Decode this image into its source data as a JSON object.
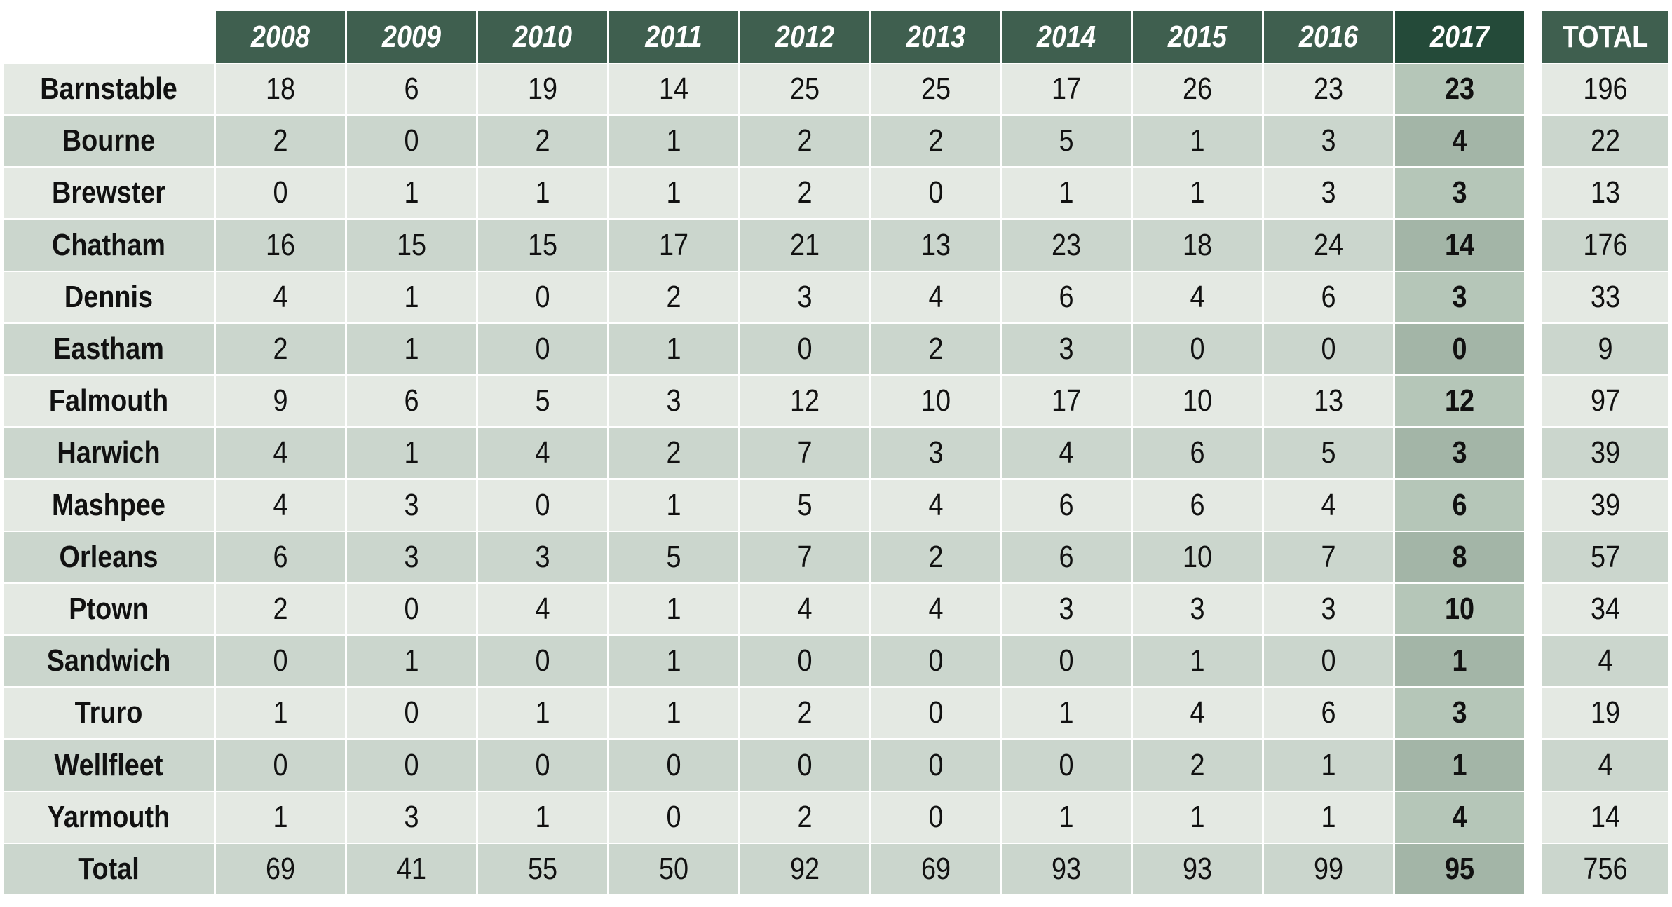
{
  "chart_data": {
    "type": "table",
    "columns": [
      "2008",
      "2009",
      "2010",
      "2011",
      "2012",
      "2013",
      "2014",
      "2015",
      "2016",
      "2017"
    ],
    "total_label": "TOTAL",
    "highlight_column": "2017",
    "rows": [
      {
        "name": "Barnstable",
        "values": [
          18,
          6,
          19,
          14,
          25,
          25,
          17,
          26,
          23,
          23
        ],
        "total": 196
      },
      {
        "name": "Bourne",
        "values": [
          2,
          0,
          2,
          1,
          2,
          2,
          5,
          1,
          3,
          4
        ],
        "total": 22
      },
      {
        "name": "Brewster",
        "values": [
          0,
          1,
          1,
          1,
          2,
          0,
          1,
          1,
          3,
          3
        ],
        "total": 13
      },
      {
        "name": "Chatham",
        "values": [
          16,
          15,
          15,
          17,
          21,
          13,
          23,
          18,
          24,
          14
        ],
        "total": 176
      },
      {
        "name": "Dennis",
        "values": [
          4,
          1,
          0,
          2,
          3,
          4,
          6,
          4,
          6,
          3
        ],
        "total": 33
      },
      {
        "name": "Eastham",
        "values": [
          2,
          1,
          0,
          1,
          0,
          2,
          3,
          0,
          0,
          0
        ],
        "total": 9
      },
      {
        "name": "Falmouth",
        "values": [
          9,
          6,
          5,
          3,
          12,
          10,
          17,
          10,
          13,
          12
        ],
        "total": 97
      },
      {
        "name": "Harwich",
        "values": [
          4,
          1,
          4,
          2,
          7,
          3,
          4,
          6,
          5,
          3
        ],
        "total": 39
      },
      {
        "name": "Mashpee",
        "values": [
          4,
          3,
          0,
          1,
          5,
          4,
          6,
          6,
          4,
          6
        ],
        "total": 39
      },
      {
        "name": "Orleans",
        "values": [
          6,
          3,
          3,
          5,
          7,
          2,
          6,
          10,
          7,
          8
        ],
        "total": 57
      },
      {
        "name": "Ptown",
        "values": [
          2,
          0,
          4,
          1,
          4,
          4,
          3,
          3,
          3,
          10
        ],
        "total": 34
      },
      {
        "name": "Sandwich",
        "values": [
          0,
          1,
          0,
          1,
          0,
          0,
          0,
          1,
          0,
          1
        ],
        "total": 4
      },
      {
        "name": "Truro",
        "values": [
          1,
          0,
          1,
          1,
          2,
          0,
          1,
          4,
          6,
          3
        ],
        "total": 19
      },
      {
        "name": "Wellfleet",
        "values": [
          0,
          0,
          0,
          0,
          0,
          0,
          0,
          2,
          1,
          1
        ],
        "total": 4
      },
      {
        "name": "Yarmouth",
        "values": [
          1,
          3,
          1,
          0,
          2,
          0,
          1,
          1,
          1,
          4
        ],
        "total": 14
      },
      {
        "name": "Total",
        "values": [
          69,
          41,
          55,
          50,
          92,
          69,
          93,
          93,
          99,
          95
        ],
        "total": 756
      }
    ]
  },
  "colors": {
    "header": "#3f5f4f",
    "header_highlight": "#244a39",
    "row_light": "#e4e9e3",
    "row_dark": "#cbd6cd",
    "highlight_light": "#b5c6b8",
    "highlight_dark": "#a3b5a7",
    "text": "#111111",
    "header_text": "#ffffff"
  }
}
